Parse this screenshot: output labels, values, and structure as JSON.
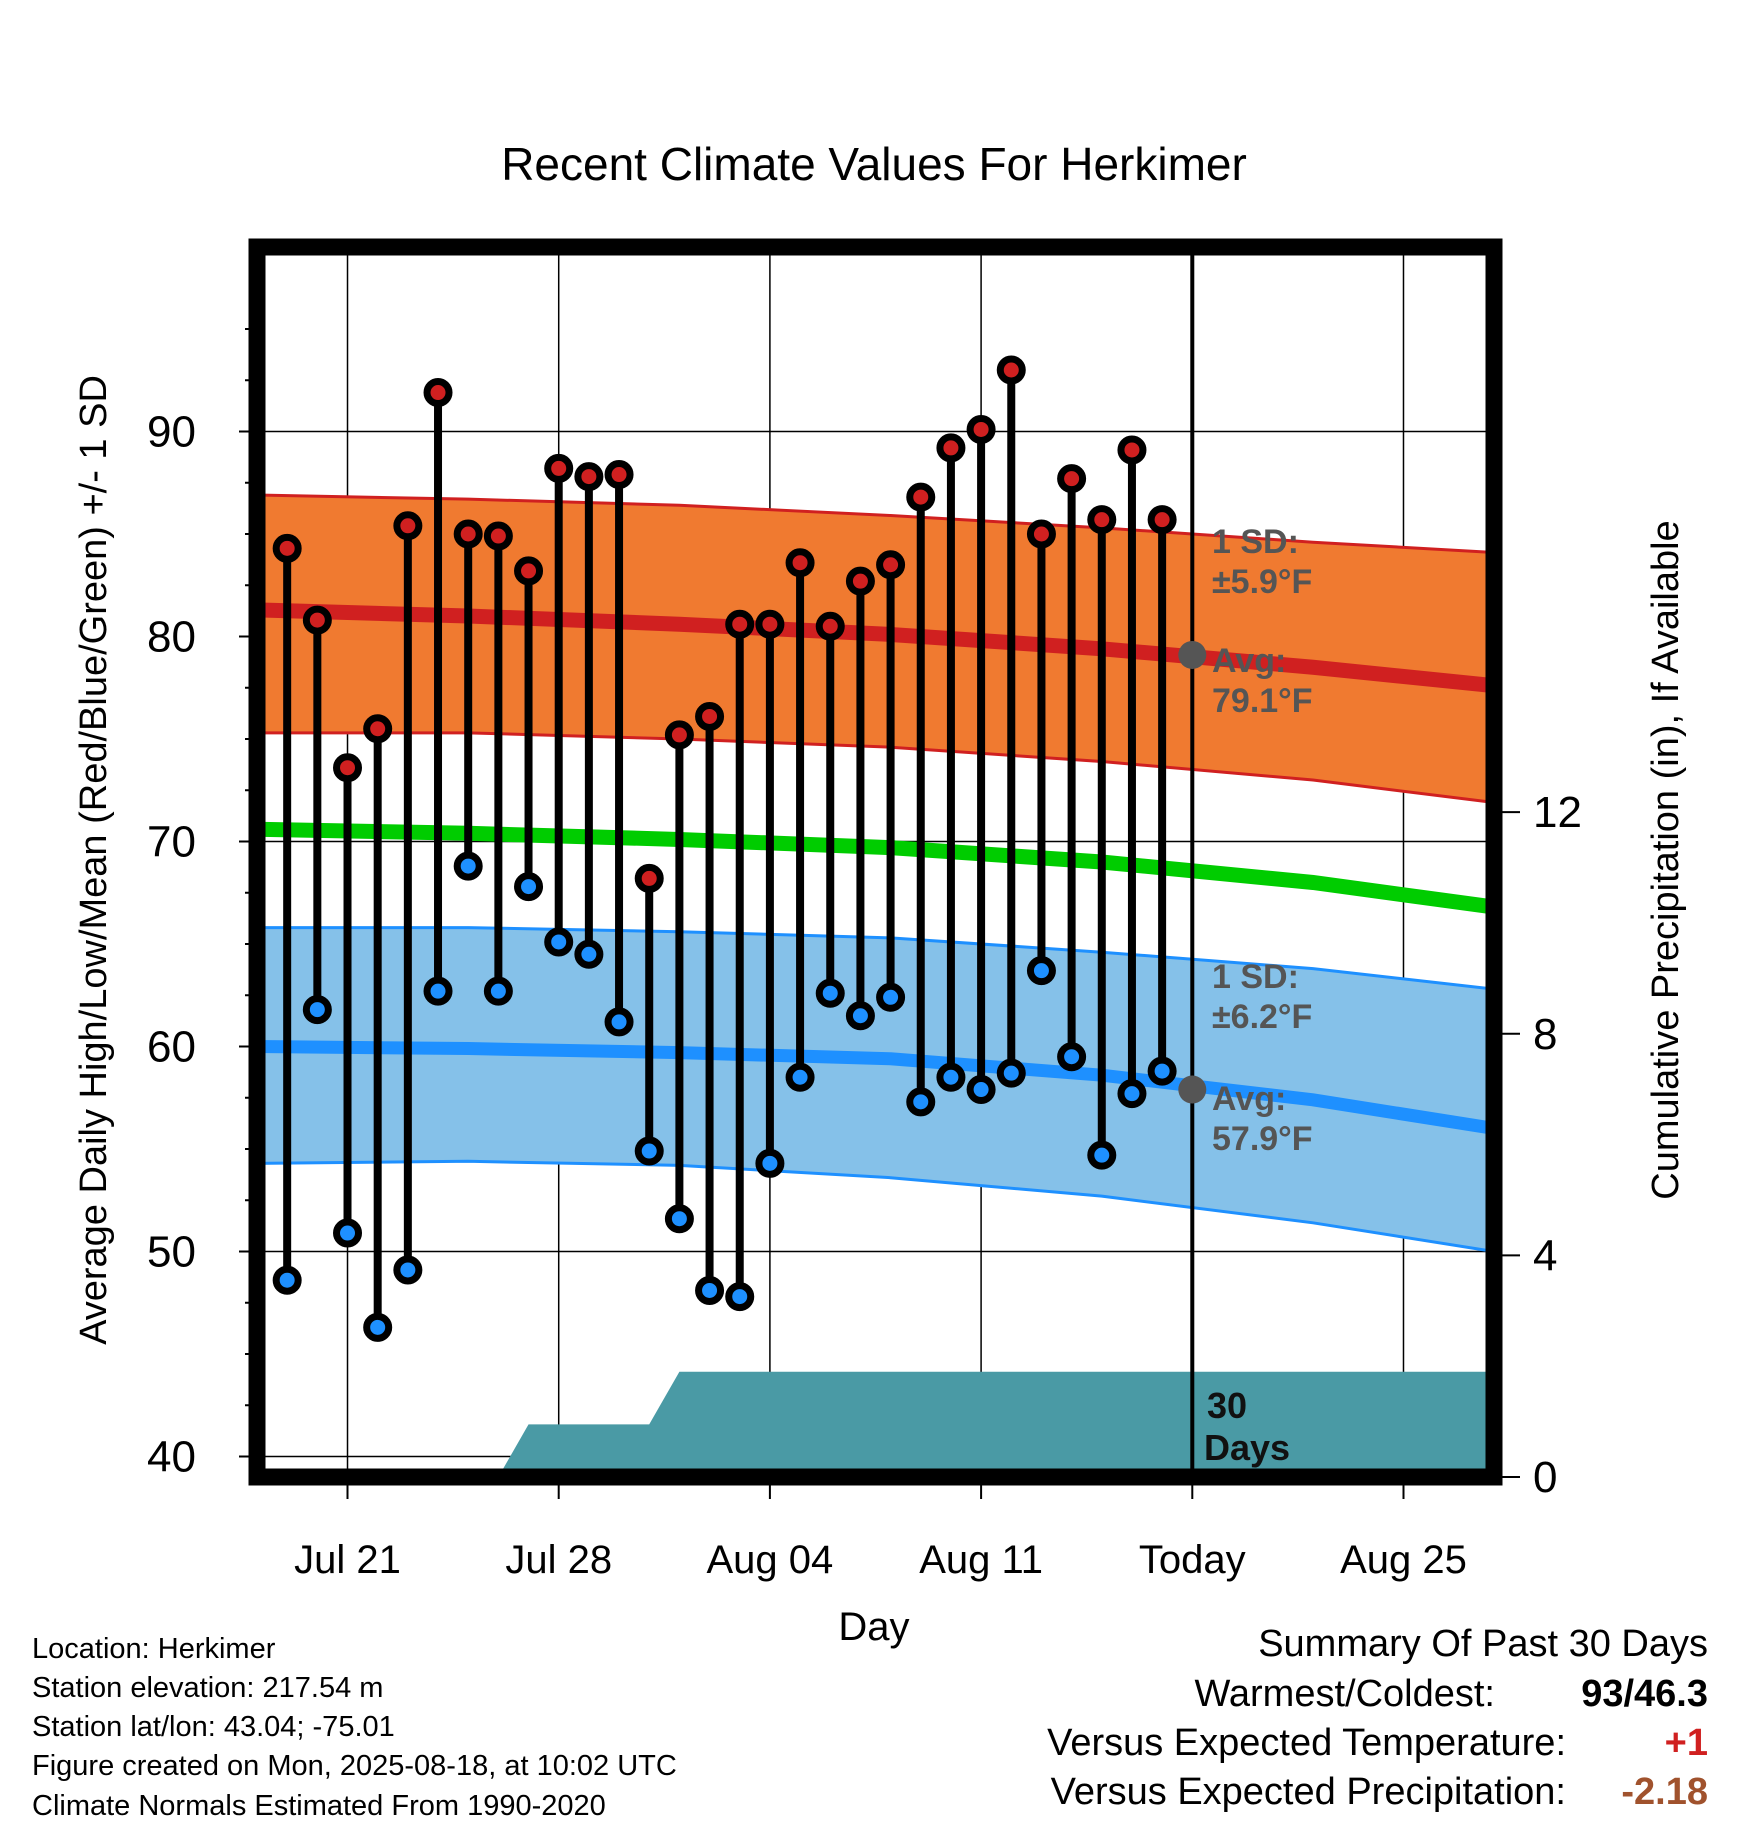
{
  "chart_data": {
    "type": "line",
    "title": "Recent Climate Values For Herkimer",
    "xlabel": "Day",
    "ylabel": "Average Daily High/Low/Mean (Red/Blue/Green) +/- 1 SD",
    "y2label": "Cumulative Precipitation (in), If Available",
    "ylim": [
      39,
      99
    ],
    "y2lim": [
      0,
      22.2
    ],
    "yticks": [
      40,
      50,
      60,
      70,
      80,
      90
    ],
    "y2ticks": [
      0,
      4,
      8,
      12
    ],
    "xticks": [
      {
        "date": "2025-07-21",
        "label": "Jul 21"
      },
      {
        "date": "2025-07-28",
        "label": "Jul 28"
      },
      {
        "date": "2025-08-04",
        "label": "Aug 04"
      },
      {
        "date": "2025-08-11",
        "label": "Aug 11"
      },
      {
        "date": "2025-08-18",
        "label": "Today"
      },
      {
        "date": "2025-08-25",
        "label": "Aug 25"
      }
    ],
    "xrange": [
      "2025-07-18",
      "2025-08-28"
    ],
    "grid": true,
    "dates": [
      "2025-07-19",
      "2025-07-20",
      "2025-07-21",
      "2025-07-22",
      "2025-07-23",
      "2025-07-24",
      "2025-07-25",
      "2025-07-26",
      "2025-07-27",
      "2025-07-28",
      "2025-07-29",
      "2025-07-30",
      "2025-07-31",
      "2025-08-01",
      "2025-08-02",
      "2025-08-03",
      "2025-08-04",
      "2025-08-05",
      "2025-08-06",
      "2025-08-07",
      "2025-08-08",
      "2025-08-09",
      "2025-08-10",
      "2025-08-11",
      "2025-08-12",
      "2025-08-13",
      "2025-08-14",
      "2025-08-15",
      "2025-08-16",
      "2025-08-17"
    ],
    "highs": [
      84.3,
      80.8,
      73.6,
      75.5,
      85.4,
      91.9,
      85.0,
      84.9,
      83.2,
      88.2,
      87.8,
      87.9,
      68.2,
      75.2,
      76.1,
      80.6,
      80.6,
      83.6,
      80.5,
      82.7,
      83.5,
      86.8,
      89.2,
      90.1,
      93.0,
      85.0,
      87.7,
      85.7,
      89.1,
      85.7
    ],
    "lows": [
      48.6,
      61.8,
      50.9,
      46.3,
      49.1,
      62.7,
      68.8,
      62.7,
      67.8,
      65.1,
      64.5,
      61.2,
      54.9,
      51.6,
      48.1,
      47.8,
      54.3,
      58.5,
      62.6,
      61.5,
      62.4,
      57.3,
      58.5,
      57.9,
      58.7,
      63.7,
      59.5,
      54.7,
      57.7,
      58.8
    ],
    "normals": {
      "dates": [
        "2025-07-18",
        "2025-07-25",
        "2025-08-01",
        "2025-08-08",
        "2025-08-15",
        "2025-08-22",
        "2025-08-28"
      ],
      "high_mean": [
        81.3,
        81.0,
        80.6,
        80.1,
        79.4,
        78.5,
        77.6
      ],
      "high_upper": [
        86.9,
        86.7,
        86.4,
        85.9,
        85.3,
        84.6,
        84.1
      ],
      "high_lower": [
        75.3,
        75.3,
        75.0,
        74.6,
        73.9,
        73.0,
        71.9
      ],
      "low_mean": [
        60.0,
        59.9,
        59.7,
        59.4,
        58.6,
        57.4,
        56.0
      ],
      "low_upper": [
        65.8,
        65.8,
        65.6,
        65.3,
        64.6,
        63.8,
        62.8
      ],
      "low_lower": [
        54.3,
        54.4,
        54.2,
        53.6,
        52.7,
        51.4,
        50.0
      ],
      "mean": [
        70.6,
        70.4,
        70.1,
        69.7,
        69.0,
        68.0,
        66.8
      ]
    },
    "precip_cumulative": {
      "dates": [
        "2025-07-18",
        "2025-07-26",
        "2025-07-27",
        "2025-07-31",
        "2025-08-01",
        "2025-08-28"
      ],
      "values": [
        0,
        0,
        0.95,
        0.95,
        1.9,
        1.9
      ]
    },
    "today_marker": {
      "date": "2025-08-18",
      "label_value": "30",
      "label_unit": "Days"
    },
    "annotations": {
      "high_sd_label": "1 SD:",
      "high_sd_value": "±5.9°F",
      "high_avg_label": "Avg:",
      "high_avg_value": "79.1°F",
      "low_sd_label": "1 SD:",
      "low_sd_value": "±6.2°F",
      "low_avg_label": "Avg:",
      "low_avg_value": "57.9°F",
      "high_avg": 79.1,
      "low_avg": 57.9
    },
    "colors": {
      "high_band": "#f07a30",
      "high_line": "#d02020",
      "low_band": "#85c1e9",
      "low_line": "#1e90ff",
      "mean_line": "#00cc00",
      "precip": "#4a9aa5",
      "high_dot": "#d02020",
      "low_dot": "#1e90ff",
      "annotation_text": "#555555"
    }
  },
  "info": {
    "location": "Location: Herkimer",
    "elevation": "Station elevation: 217.54 m",
    "latlon": "Station lat/lon: 43.04; -75.01",
    "created": "Figure created on Mon, 2025-08-18, at 10:02 UTC",
    "normals": "Climate Normals Estimated From 1990-2020"
  },
  "summary": {
    "title": "Summary Of Past 30 Days",
    "warmest_label": "Warmest/Coldest:",
    "warmest_value": "93/46.3",
    "temp_label": "Versus Expected Temperature:",
    "temp_value": "+1",
    "precip_label": "Versus Expected Precipitation:",
    "precip_value": "-2.18",
    "temp_color": "#d02020",
    "precip_color": "#a0522d"
  }
}
